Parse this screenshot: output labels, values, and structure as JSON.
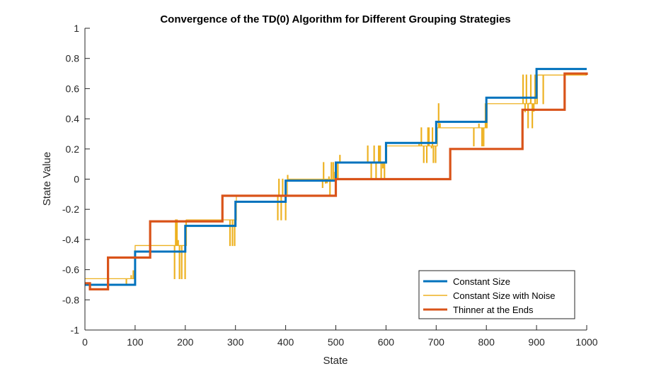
{
  "chart_data": {
    "type": "line",
    "title": "Convergence of the TD(0) Algorithm for Different Grouping Strategies",
    "xlabel": "State",
    "ylabel": "State Value",
    "xlim": [
      0,
      1000
    ],
    "ylim": [
      -1,
      1
    ],
    "xticks": [
      0,
      100,
      200,
      300,
      400,
      500,
      600,
      700,
      800,
      900,
      1000
    ],
    "yticks": [
      -1,
      -0.8,
      -0.6,
      -0.4,
      -0.2,
      0,
      0.2,
      0.4,
      0.6,
      0.8,
      1
    ],
    "xtick_labels": [
      "0",
      "100",
      "200",
      "300",
      "400",
      "500",
      "600",
      "700",
      "800",
      "900",
      "1000"
    ],
    "ytick_labels": [
      "-1",
      "-0.8",
      "-0.6",
      "-0.4",
      "-0.2",
      "0",
      "0.2",
      "0.4",
      "0.6",
      "0.8",
      "1"
    ],
    "grid": false,
    "legend_position": "bottom-right",
    "series": [
      {
        "name": "Constant Size",
        "color": "#0072BD",
        "style": "step",
        "x": [
          0,
          100,
          200,
          300,
          400,
          500,
          600,
          700,
          800,
          900,
          1000
        ],
        "y": [
          -0.7,
          -0.48,
          -0.31,
          -0.15,
          -0.01,
          0.11,
          0.24,
          0.38,
          0.54,
          0.73,
          0.73
        ]
      },
      {
        "name": "Constant Size with Noise",
        "color": "#EDB120",
        "style": "noisy-step",
        "x": [
          0,
          100,
          200,
          300,
          400,
          500,
          600,
          700,
          800,
          900,
          1000
        ],
        "y": [
          -0.66,
          -0.44,
          -0.27,
          -0.11,
          0.0,
          0.11,
          0.22,
          0.34,
          0.5,
          0.69,
          0.69
        ],
        "spike_regions": [
          [
            82,
            100
          ],
          [
            178,
            205
          ],
          [
            288,
            312
          ],
          [
            382,
            405
          ],
          [
            468,
            510
          ],
          [
            562,
            598
          ],
          [
            665,
            708
          ],
          [
            772,
            803
          ],
          [
            868,
            915
          ]
        ]
      },
      {
        "name": "Thinner at the Ends",
        "color": "#D95319",
        "style": "step",
        "x": [
          0,
          10,
          46,
          130,
          274,
          500,
          728,
          872,
          956,
          1000
        ],
        "y": [
          -0.69,
          -0.73,
          -0.52,
          -0.28,
          -0.11,
          0.0,
          0.2,
          0.46,
          0.7,
          0.69
        ]
      }
    ]
  }
}
